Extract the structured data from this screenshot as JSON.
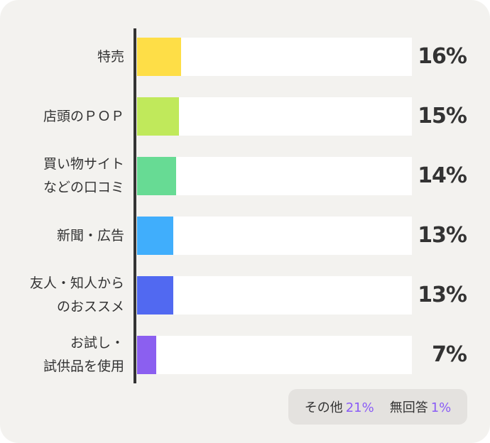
{
  "chart_data": {
    "type": "bar",
    "orientation": "horizontal",
    "xlim": [
      0,
      100
    ],
    "categories": [
      "特売",
      "店頭のＰＯＰ",
      "買い物サイト\nなどの口コミ",
      "新聞・広告",
      "友人・知人から\nのおススメ",
      "お試し・\n試供品を使用"
    ],
    "values": [
      16,
      15,
      14,
      13,
      13,
      7
    ],
    "value_labels": [
      "16%",
      "15%",
      "14%",
      "13%",
      "13%",
      "7%"
    ],
    "colors": [
      "#fede47",
      "#c0e95b",
      "#67db94",
      "#40aefc",
      "#5169f1",
      "#8b5ff0"
    ]
  },
  "note": {
    "other_label": "その他",
    "other_value": "21%",
    "noanswer_label": "無回答",
    "noanswer_value": "1%"
  },
  "colors": {
    "accent": "#8a5cf6",
    "track": "#ffffff",
    "axis": "#333333",
    "background": "#f3f2ef"
  }
}
